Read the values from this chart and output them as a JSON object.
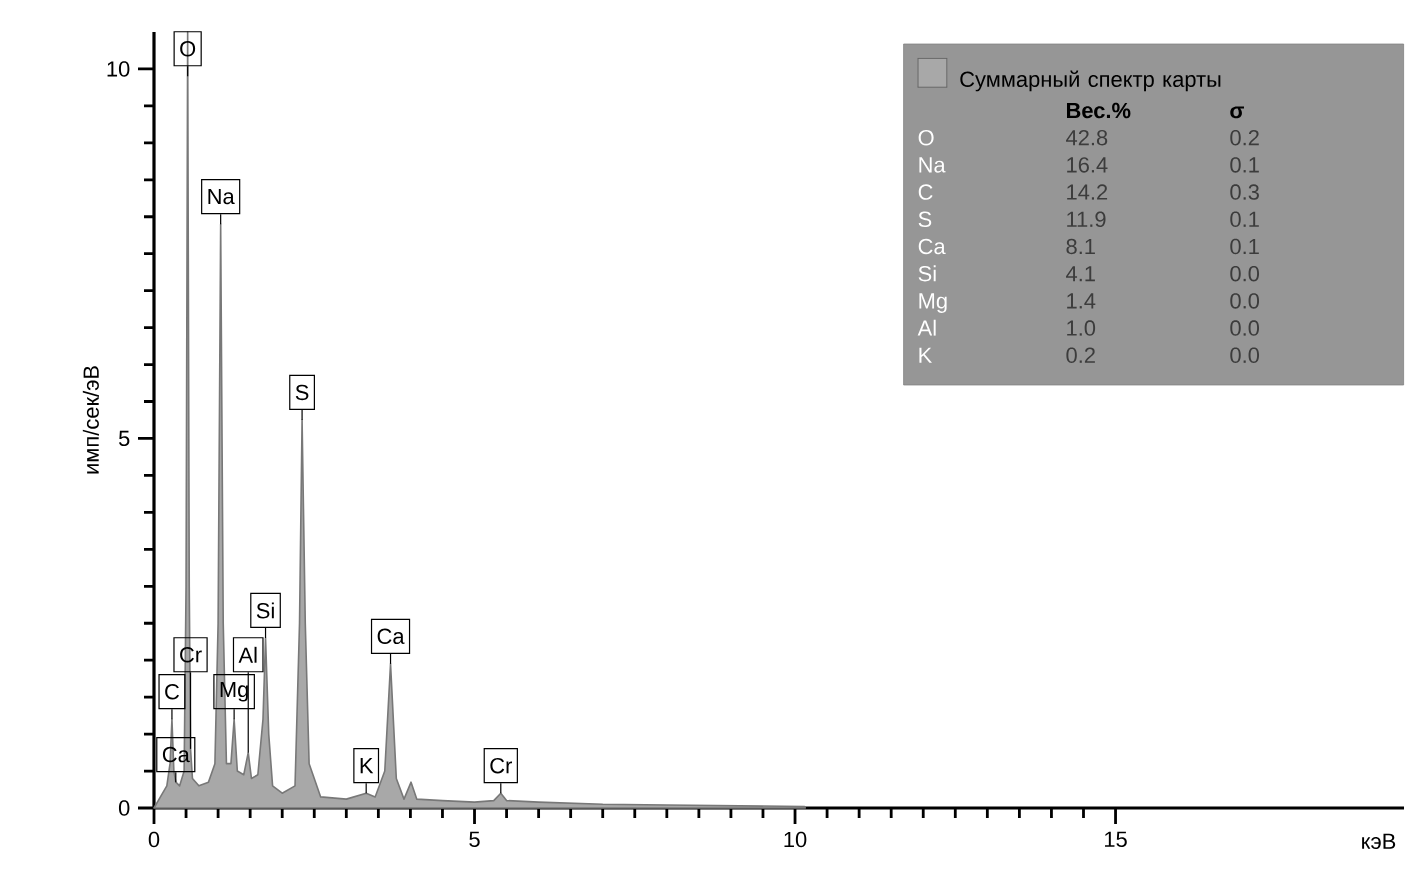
{
  "chart_data": {
    "type": "area",
    "xlabel": "кэВ",
    "ylabel": "имп/сек/эВ",
    "x": [
      0,
      0.1,
      0.2,
      0.25,
      0.28,
      0.31,
      0.34,
      0.4,
      0.47,
      0.5,
      0.525,
      0.55,
      0.57,
      0.6,
      0.7,
      0.85,
      0.95,
      1.0,
      1.04,
      1.08,
      1.13,
      1.2,
      1.25,
      1.3,
      1.4,
      1.47,
      1.52,
      1.62,
      1.7,
      1.74,
      1.79,
      1.85,
      2.0,
      2.2,
      2.27,
      2.31,
      2.36,
      2.42,
      2.5,
      2.6,
      3.0,
      3.31,
      3.45,
      3.6,
      3.69,
      3.78,
      3.9,
      4.01,
      4.1,
      4.5,
      5.0,
      5.3,
      5.41,
      5.5,
      6.0,
      7.0,
      8.0,
      10.15,
      10.16
    ],
    "series": [
      {
        "name": "Суммарный спектр карты",
        "color": "#a8a8a8",
        "values": [
          0,
          0.15,
          0.3,
          0.6,
          1.2,
          0.5,
          0.35,
          0.3,
          0.5,
          3,
          10.5,
          3,
          0.8,
          0.4,
          0.3,
          0.35,
          0.6,
          2.5,
          7.9,
          2.5,
          0.6,
          0.6,
          1.2,
          0.5,
          0.45,
          0.75,
          0.4,
          0.45,
          1.2,
          2.3,
          1,
          0.3,
          0.2,
          0.3,
          2.5,
          5.25,
          2.5,
          0.6,
          0.4,
          0.15,
          0.12,
          0.2,
          0.15,
          0.5,
          1.95,
          0.4,
          0.12,
          0.35,
          0.12,
          0.1,
          0.08,
          0.1,
          0.2,
          0.1,
          0.08,
          0.05,
          0.04,
          0.02,
          0
        ]
      }
    ],
    "xlim": [
      0,
      19.5
    ],
    "ylim": [
      0,
      10.5
    ],
    "xticks": [
      0,
      5,
      10,
      15
    ],
    "yticks": [
      0,
      5,
      10
    ],
    "legend": "top right",
    "annotations": [
      {
        "text": "O",
        "x": 0.525,
        "y": 9.9
      },
      {
        "text": "Na",
        "x": 1.04,
        "y": 7.9
      },
      {
        "text": "S",
        "x": 2.31,
        "y": 5.25
      },
      {
        "text": "Ca",
        "x": 3.69,
        "y": 1.95
      },
      {
        "text": "Si",
        "x": 1.74,
        "y": 2.3
      },
      {
        "text": "C",
        "x": 0.28,
        "y": 1.2
      },
      {
        "text": "Mg",
        "x": 1.25,
        "y": 1.2
      },
      {
        "text": "Al",
        "x": 1.47,
        "y": 0.75
      },
      {
        "text": "K",
        "x": 3.31,
        "y": 0.2
      },
      {
        "text": "Cr",
        "x": 5.41,
        "y": 0.2
      },
      {
        "text": "Ca",
        "x": 0.34,
        "y": 0.35
      },
      {
        "text": "Cr",
        "x": 0.57,
        "y": 0.8
      },
      "Вес.%",
      "σ",
      "O",
      "42.8",
      "0.2",
      "Na",
      "16.4",
      "0.1",
      "C",
      "14.2",
      "0.3",
      "S",
      "11.9",
      "0.1",
      "Ca",
      "8.1",
      "0.1",
      "Si",
      "4.1",
      "0.0",
      "Mg",
      "1.4",
      "0.0",
      "Al",
      "1.0",
      "0.0",
      "K",
      "0.2",
      "0.0"
    ]
  }
}
